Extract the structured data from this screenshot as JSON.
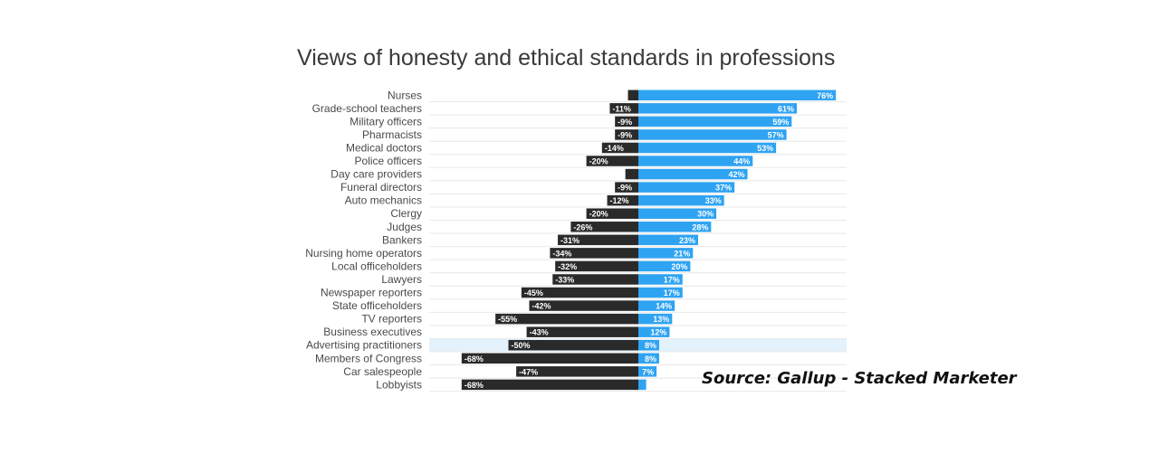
{
  "chart_data": {
    "type": "bar",
    "title": "Views of honesty and ethical standards in professions",
    "xlabel": "",
    "ylabel": "",
    "categories": [
      "Nurses",
      "Grade-school teachers",
      "Military officers",
      "Pharmacists",
      "Medical doctors",
      "Police officers",
      "Day care providers",
      "Funeral directors",
      "Auto mechanics",
      "Clergy",
      "Judges",
      "Bankers",
      "Nursing home operators",
      "Local officeholders",
      "Lawyers",
      "Newspaper reporters",
      "State officeholders",
      "TV reporters",
      "Business executives",
      "Advertising practitioners",
      "Members of Congress",
      "Car salespeople",
      "Lobbyists"
    ],
    "series": [
      {
        "color": "#2a2a2a",
        "values": [
          -4,
          -11,
          -9,
          -9,
          -14,
          -20,
          -5,
          -9,
          -12,
          -20,
          -26,
          -31,
          -34,
          -32,
          -33,
          -45,
          -42,
          -55,
          -43,
          -50,
          -68,
          -47,
          -68
        ],
        "labels": [
          "",
          "-11%",
          "-9%",
          "-9%",
          "-14%",
          "-20%",
          "",
          "-9%",
          "-12%",
          "-20%",
          "-26%",
          "-31%",
          "-34%",
          "-32%",
          "-33%",
          "-45%",
          "-42%",
          "-55%",
          "-43%",
          "-50%",
          "-68%",
          "-47%",
          "-68%"
        ]
      },
      {
        "color": "#2ea3f2",
        "values": [
          76,
          61,
          59,
          57,
          53,
          44,
          42,
          37,
          33,
          30,
          28,
          23,
          21,
          20,
          17,
          17,
          14,
          13,
          12,
          8,
          8,
          7,
          3
        ],
        "labels": [
          "76%",
          "61%",
          "59%",
          "57%",
          "53%",
          "44%",
          "42%",
          "37%",
          "33%",
          "30%",
          "28%",
          "23%",
          "21%",
          "20%",
          "17%",
          "17%",
          "14%",
          "13%",
          "12%",
          "8%",
          "8%",
          "7%",
          ""
        ]
      }
    ],
    "xlim": [
      -68,
      76
    ],
    "highlight_category": "Advertising practitioners",
    "highlight_color": "#e3f2fc",
    "grid": false,
    "legend": "none"
  },
  "source": "Source: Gallup - Stacked Marketer"
}
